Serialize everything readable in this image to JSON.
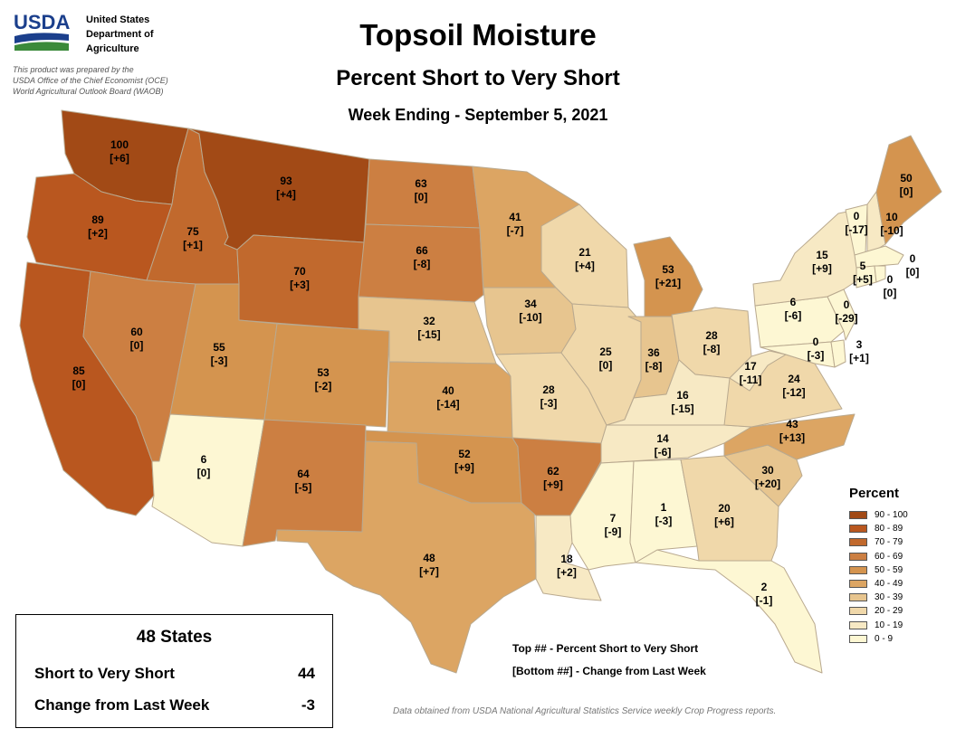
{
  "header": {
    "agency_abbrev": "USDA",
    "agency_lines": [
      "United States",
      "Department of",
      "Agriculture"
    ],
    "credit_lines": [
      "This product was prepared by the",
      "USDA Office of the Chief Economist (OCE)",
      "World Agricultural Outlook Board (WAOB)"
    ],
    "title": "Topsoil Moisture",
    "subtitle": "Percent Short to Very Short",
    "date_line": "Week Ending - September 5, 2021"
  },
  "legend": {
    "title": "Percent",
    "items": [
      {
        "label": "90 - 100",
        "color": "#a24a16"
      },
      {
        "label": "80 - 89",
        "color": "#b9571f"
      },
      {
        "label": "70 - 79",
        "color": "#c1692d"
      },
      {
        "label": "60 - 69",
        "color": "#cc7f42"
      },
      {
        "label": "50 - 59",
        "color": "#d4944f"
      },
      {
        "label": "40 - 49",
        "color": "#dca563"
      },
      {
        "label": "30 - 39",
        "color": "#e7c58f"
      },
      {
        "label": "20 - 29",
        "color": "#f0d8aa"
      },
      {
        "label": "10 - 19",
        "color": "#f7e9c4"
      },
      {
        "label": "0 - 9",
        "color": "#fdf7d3"
      }
    ]
  },
  "states": [
    {
      "state": "WA",
      "value": "100",
      "change": "[+6]"
    },
    {
      "state": "OR",
      "value": "89",
      "change": "[+2]"
    },
    {
      "state": "CA",
      "value": "85",
      "change": "[0]"
    },
    {
      "state": "ID",
      "value": "75",
      "change": "[+1]"
    },
    {
      "state": "NV",
      "value": "60",
      "change": "[0]"
    },
    {
      "state": "MT",
      "value": "93",
      "change": "[+4]"
    },
    {
      "state": "WY",
      "value": "70",
      "change": "[+3]"
    },
    {
      "state": "UT",
      "value": "55",
      "change": "[-3]"
    },
    {
      "state": "AZ",
      "value": "6",
      "change": "[0]"
    },
    {
      "state": "CO",
      "value": "53",
      "change": "[-2]"
    },
    {
      "state": "NM",
      "value": "64",
      "change": "[-5]"
    },
    {
      "state": "ND",
      "value": "63",
      "change": "[0]"
    },
    {
      "state": "SD",
      "value": "66",
      "change": "[-8]"
    },
    {
      "state": "NE",
      "value": "32",
      "change": "[-15]"
    },
    {
      "state": "KS",
      "value": "40",
      "change": "[-14]"
    },
    {
      "state": "OK",
      "value": "52",
      "change": "[+9]"
    },
    {
      "state": "TX",
      "value": "48",
      "change": "[+7]"
    },
    {
      "state": "MN",
      "value": "41",
      "change": "[-7]"
    },
    {
      "state": "IA",
      "value": "34",
      "change": "[-10]"
    },
    {
      "state": "MO",
      "value": "28",
      "change": "[-3]"
    },
    {
      "state": "AR",
      "value": "62",
      "change": "[+9]"
    },
    {
      "state": "LA",
      "value": "18",
      "change": "[+2]"
    },
    {
      "state": "WI",
      "value": "21",
      "change": "[+4]"
    },
    {
      "state": "IL",
      "value": "25",
      "change": "[0]"
    },
    {
      "state": "MI",
      "value": "53",
      "change": "[+21]"
    },
    {
      "state": "IN",
      "value": "36",
      "change": "[-8]"
    },
    {
      "state": "OH",
      "value": "28",
      "change": "[-8]"
    },
    {
      "state": "KY",
      "value": "16",
      "change": "[-15]"
    },
    {
      "state": "TN",
      "value": "14",
      "change": "[-6]"
    },
    {
      "state": "MS",
      "value": "7",
      "change": "[-9]"
    },
    {
      "state": "AL",
      "value": "1",
      "change": "[-3]"
    },
    {
      "state": "GA",
      "value": "20",
      "change": "[+6]"
    },
    {
      "state": "FL",
      "value": "2",
      "change": "[-1]"
    },
    {
      "state": "SC",
      "value": "30",
      "change": "[+20]"
    },
    {
      "state": "NC",
      "value": "43",
      "change": "[+13]"
    },
    {
      "state": "VA",
      "value": "24",
      "change": "[-12]"
    },
    {
      "state": "WV",
      "value": "17",
      "change": "[-11]"
    },
    {
      "state": "PA",
      "value": "6",
      "change": "[-6]"
    },
    {
      "state": "NY",
      "value": "15",
      "change": "[+9]"
    },
    {
      "state": "MD",
      "value": "0",
      "change": "[-3]"
    },
    {
      "state": "DE",
      "value": "3",
      "change": "[+1]"
    },
    {
      "state": "NJ",
      "value": "0",
      "change": "[-29]"
    },
    {
      "state": "VT",
      "value": "0",
      "change": "[-17]"
    },
    {
      "state": "NH",
      "value": "10",
      "change": "[-10]"
    },
    {
      "state": "ME",
      "value": "50",
      "change": "[0]"
    },
    {
      "state": "MA",
      "value": "0",
      "change": "[0]"
    },
    {
      "state": "CT",
      "value": "5",
      "change": "[+5]"
    },
    {
      "state": "RI",
      "value": "0",
      "change": "[0]"
    }
  ],
  "summary": {
    "title": "48 States",
    "rows": [
      {
        "label": "Short to Very Short",
        "value": "44"
      },
      {
        "label": "Change from Last Week",
        "value": "-3"
      }
    ]
  },
  "keynote": {
    "line1": "Top ## - Percent Short to Very Short",
    "line2": "[Bottom ##] - Change from Last Week"
  },
  "source": "Data obtained from USDA National Agricultural Statistics Service weekly Crop Progress reports."
}
